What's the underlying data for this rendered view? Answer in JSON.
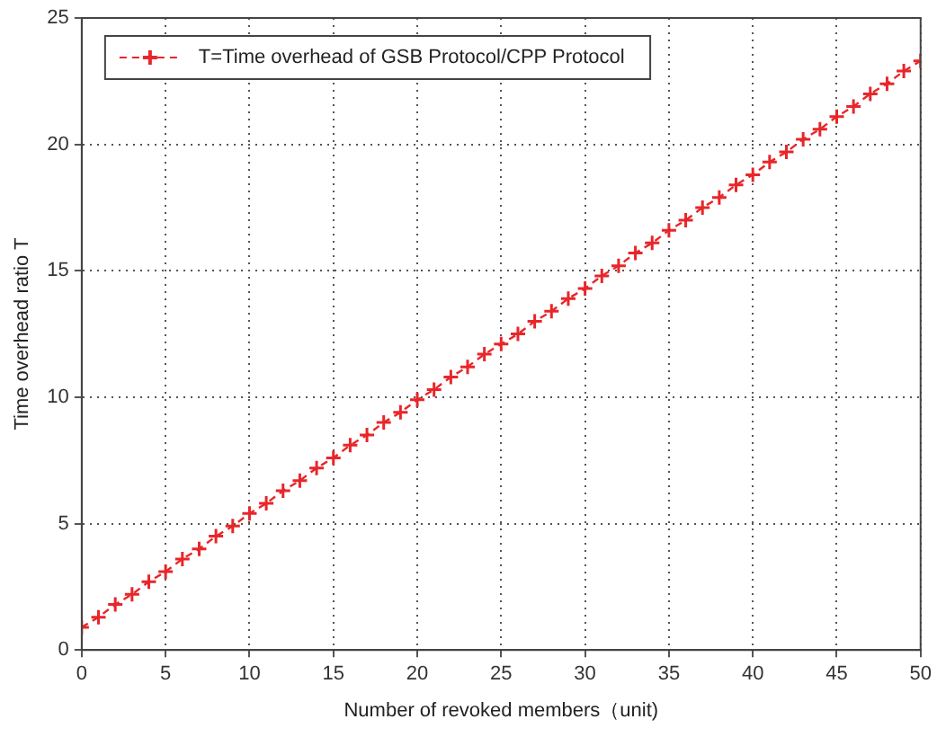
{
  "chart_data": {
    "type": "line",
    "xlabel": "Number of revoked members（unit)",
    "ylabel": "Time overhead ratio T",
    "x": [
      0,
      1,
      2,
      3,
      4,
      5,
      6,
      7,
      8,
      9,
      10,
      11,
      12,
      13,
      14,
      15,
      16,
      17,
      18,
      19,
      20,
      21,
      22,
      23,
      24,
      25,
      26,
      27,
      28,
      29,
      30,
      31,
      32,
      33,
      34,
      35,
      36,
      37,
      38,
      39,
      40,
      41,
      42,
      43,
      44,
      45,
      46,
      47,
      48,
      49,
      50
    ],
    "series": [
      {
        "name": "T=Time overhead of GSB Protocol/CPP Protocol",
        "color": "#e8262a",
        "values": [
          0.9,
          1.3,
          1.8,
          2.2,
          2.7,
          3.1,
          3.6,
          4.0,
          4.5,
          4.9,
          5.4,
          5.8,
          6.3,
          6.7,
          7.2,
          7.6,
          8.1,
          8.5,
          9.0,
          9.4,
          9.9,
          10.3,
          10.8,
          11.2,
          11.7,
          12.1,
          12.5,
          13.0,
          13.4,
          13.9,
          14.3,
          14.8,
          15.2,
          15.7,
          16.1,
          16.6,
          17.0,
          17.5,
          17.9,
          18.4,
          18.8,
          19.3,
          19.7,
          20.2,
          20.6,
          21.1,
          21.5,
          22.0,
          22.4,
          22.9,
          23.3
        ]
      }
    ],
    "xlim": [
      0,
      50
    ],
    "xticks": [
      0,
      5,
      10,
      15,
      20,
      25,
      30,
      35,
      40,
      45,
      50
    ],
    "ylim": [
      0,
      25
    ],
    "yticks": [
      0,
      5,
      10,
      15,
      20,
      25
    ],
    "grid": true,
    "legend": "top left",
    "marker": "cross",
    "line_style": "dashed"
  }
}
